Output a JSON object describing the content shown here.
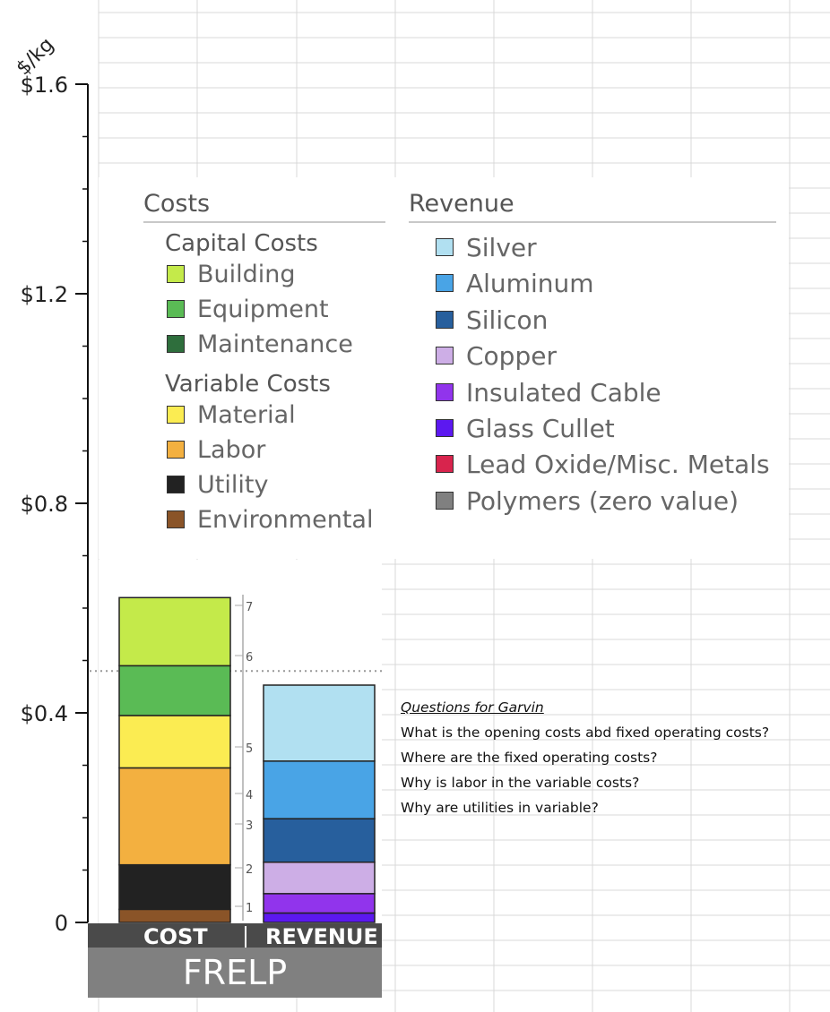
{
  "chart_data": {
    "type": "bar",
    "stacked": true,
    "y_unit": "$/kg",
    "ylim": [
      0,
      1.6
    ],
    "y_ticks": [
      {
        "value": 0,
        "label": "0"
      },
      {
        "value": 0.4,
        "label": "$0.4"
      },
      {
        "value": 0.8,
        "label": "$0.8"
      },
      {
        "value": 1.2,
        "label": "$1.2"
      },
      {
        "value": 1.6,
        "label": "$1.6"
      }
    ],
    "categories": [
      "COST",
      "REVENUE"
    ],
    "group_label": "FRELP",
    "legend": {
      "costs": {
        "title": "Costs",
        "groups": [
          {
            "title": "Capital Costs",
            "items": [
              {
                "label": "Building",
                "color": "#c4ea4a"
              },
              {
                "label": "Equipment",
                "color": "#5abb55"
              },
              {
                "label": "Maintenance",
                "color": "#2e6e3c"
              }
            ]
          },
          {
            "title": "Variable Costs",
            "items": [
              {
                "label": "Material",
                "color": "#fbec52"
              },
              {
                "label": "Labor",
                "color": "#f3b040"
              },
              {
                "label": "Utility",
                "color": "#222222"
              },
              {
                "label": "Environmental",
                "color": "#8a5428"
              }
            ]
          }
        ]
      },
      "revenue": {
        "title": "Revenue",
        "items": [
          {
            "label": "Silver",
            "color": "#b1e0f1"
          },
          {
            "label": "Aluminum",
            "color": "#49a4e6"
          },
          {
            "label": "Silicon",
            "color": "#275f9d"
          },
          {
            "label": "Copper",
            "color": "#cdaee6"
          },
          {
            "label": "Insulated Cable",
            "color": "#9134ec"
          },
          {
            "label": "Glass Cullet",
            "color": "#5c18f0"
          },
          {
            "label": "Lead Oxide/Misc. Metals",
            "color": "#d8244d"
          },
          {
            "label": "Polymers (zero value)",
            "color": "#808080"
          }
        ]
      }
    },
    "series": [
      {
        "stack": "COST",
        "name": "Environmental",
        "value": 0.025,
        "color": "#8a5428"
      },
      {
        "stack": "COST",
        "name": "Utility",
        "value": 0.085,
        "color": "#222222"
      },
      {
        "stack": "COST",
        "name": "Labor",
        "value": 0.185,
        "color": "#f3b040"
      },
      {
        "stack": "COST",
        "name": "Material",
        "value": 0.1,
        "color": "#fbec52"
      },
      {
        "stack": "COST",
        "name": "Equipment",
        "value": 0.095,
        "color": "#5abb55"
      },
      {
        "stack": "COST",
        "name": "Building",
        "value": 0.13,
        "color": "#c4ea4a"
      },
      {
        "stack": "REVENUE",
        "name": "Glass Cullet",
        "value": 0.018,
        "color": "#5c18f0"
      },
      {
        "stack": "REVENUE",
        "name": "Insulated Cable",
        "value": 0.037,
        "color": "#9134ec"
      },
      {
        "stack": "REVENUE",
        "name": "Copper",
        "value": 0.06,
        "color": "#cdaee6"
      },
      {
        "stack": "REVENUE",
        "name": "Silicon",
        "value": 0.083,
        "color": "#275f9d"
      },
      {
        "stack": "REVENUE",
        "name": "Aluminum",
        "value": 0.11,
        "color": "#49a4e6"
      },
      {
        "stack": "REVENUE",
        "name": "Silver",
        "value": 0.145,
        "color": "#b1e0f1"
      }
    ],
    "side_scale_labels": [
      "1",
      "2",
      "3",
      "4",
      "5",
      "6",
      "7"
    ],
    "reference_line": 0.48
  },
  "questions": {
    "title": "Questions for Garvin",
    "items": [
      "What is the opening costs abd fixed operating costs?",
      "Where are the fixed operating costs?",
      "Why is labor in the variable costs?",
      "Why are utilities in variable?"
    ]
  }
}
